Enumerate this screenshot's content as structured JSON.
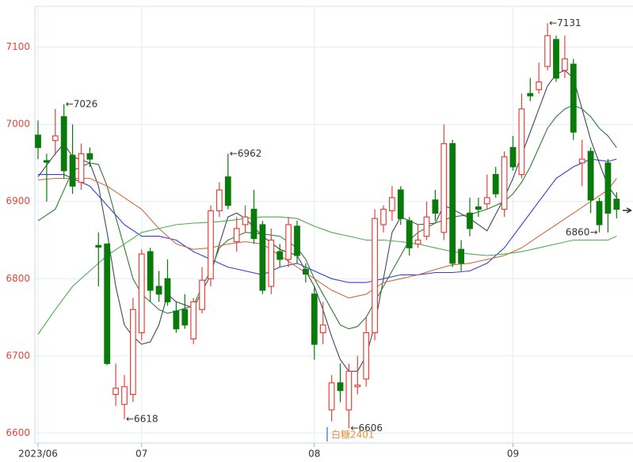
{
  "chart_data": {
    "type": "candlestick",
    "categories": [
      "2023/06",
      null,
      null,
      null,
      null,
      null,
      null,
      null,
      null,
      null,
      null,
      null,
      "07",
      null,
      null,
      null,
      null,
      null,
      null,
      null,
      null,
      null,
      null,
      null,
      null,
      null,
      null,
      null,
      null,
      null,
      null,
      null,
      "08",
      null,
      null,
      null,
      null,
      null,
      null,
      null,
      null,
      null,
      null,
      null,
      null,
      null,
      null,
      null,
      null,
      null,
      null,
      null,
      null,
      null,
      null,
      "09",
      null,
      null,
      null,
      null,
      null,
      null,
      null,
      null,
      null,
      null,
      null,
      null
    ],
    "open": [
      6986,
      6953,
      6979,
      7010,
      6960,
      6925,
      6962,
      6843,
      6845,
      6650,
      6637,
      6650,
      6730,
      6835,
      6790,
      6800,
      6758,
      6760,
      6722,
      6760,
      6800,
      6888,
      6932,
      6848,
      6870,
      6890,
      6870,
      6790,
      6835,
      6825,
      6868,
      6812,
      6780,
      6730,
      6630,
      6665,
      6630,
      6660,
      6670,
      6730,
      6870,
      6888,
      6915,
      6875,
      6845,
      6855,
      6902,
      6860,
      6975,
      6838,
      6885,
      6893,
      6897,
      6935,
      6890,
      6970,
      6935,
      7040,
      7045,
      7075,
      7110,
      7070,
      7078,
      6950,
      6965,
      6900,
      6950,
      6903
    ],
    "high": [
      7005,
      6962,
      7020,
      7026,
      7000,
      6975,
      6970,
      6860,
      6845,
      6690,
      6675,
      6775,
      6838,
      6840,
      6810,
      6825,
      6770,
      6780,
      6775,
      6815,
      6895,
      6925,
      6962,
      6880,
      6895,
      6915,
      6875,
      6865,
      6845,
      6880,
      6875,
      6820,
      6790,
      6770,
      6675,
      6690,
      6690,
      6700,
      6750,
      6890,
      6895,
      6920,
      6920,
      6880,
      6870,
      6900,
      6915,
      7000,
      6980,
      6850,
      6905,
      6905,
      6935,
      6945,
      6965,
      6985,
      7040,
      7060,
      7080,
      7131,
      7115,
      7115,
      7085,
      6980,
      6970,
      6905,
      6955,
      6912
    ],
    "low": [
      6955,
      6900,
      6960,
      6930,
      6910,
      6915,
      6945,
      6790,
      6688,
      6635,
      6618,
      6640,
      6720,
      6770,
      6770,
      6765,
      6730,
      6735,
      6715,
      6755,
      6790,
      6880,
      6890,
      6835,
      6860,
      6845,
      6780,
      6780,
      6815,
      6815,
      6820,
      6795,
      6695,
      6715,
      6615,
      6640,
      6606,
      6650,
      6660,
      6720,
      6860,
      6875,
      6870,
      6830,
      6840,
      6850,
      6875,
      6850,
      6815,
      6810,
      6855,
      6880,
      6890,
      6905,
      6880,
      6940,
      6930,
      7030,
      7040,
      7070,
      7055,
      7060,
      6980,
      6920,
      6885,
      6860,
      6860,
      6878
    ],
    "close": [
      6970,
      6951,
      6985,
      6940,
      6920,
      6962,
      6955,
      6841,
      6690,
      6658,
      6660,
      6760,
      6832,
      6785,
      6780,
      6770,
      6735,
      6740,
      6770,
      6798,
      6888,
      6915,
      6895,
      6865,
      6880,
      6852,
      6785,
      6850,
      6825,
      6870,
      6830,
      6806,
      6715,
      6740,
      6665,
      6655,
      6680,
      6662,
      6730,
      6878,
      6890,
      6905,
      6878,
      6840,
      6850,
      6880,
      6885,
      6975,
      6820,
      6820,
      6865,
      6890,
      6905,
      6910,
      6958,
      6945,
      7020,
      7037,
      7055,
      7115,
      7060,
      7085,
      6990,
      6955,
      6902,
      6870,
      6885,
      6890
    ],
    "up_color": "#e8413b",
    "down_color": "#0a7a0a",
    "lines": [
      {
        "color": "#3d4a5c",
        "x": [
          0,
          2,
          3,
          4,
          6,
          7,
          8,
          9,
          10,
          11,
          12,
          13,
          14,
          15,
          16,
          18,
          20,
          21,
          22,
          23,
          24,
          26,
          28,
          30,
          31,
          32,
          33,
          34,
          35,
          36,
          37,
          38,
          39,
          40,
          41,
          42,
          44,
          46,
          47,
          48,
          50,
          52,
          54,
          55,
          56,
          57,
          58,
          59,
          60,
          61,
          62,
          63,
          64,
          65,
          66,
          67
        ],
        "values": [
          6932,
          6962,
          6975,
          6958,
          6950,
          6920,
          6860,
          6790,
          6740,
          6725,
          6715,
          6718,
          6740,
          6780,
          6770,
          6762,
          6805,
          6845,
          6880,
          6885,
          6878,
          6855,
          6838,
          6830,
          6810,
          6790,
          6760,
          6725,
          6695,
          6680,
          6680,
          6700,
          6740,
          6800,
          6860,
          6880,
          6870,
          6872,
          6895,
          6890,
          6878,
          6862,
          6905,
          6930,
          6960,
          6990,
          7020,
          7050,
          7065,
          7070,
          7060,
          7020,
          6980,
          6950,
          6920,
          6905
        ]
      },
      {
        "color": "#2e7d32",
        "x": [
          0,
          2,
          4,
          6,
          7,
          8,
          9,
          10,
          11,
          12,
          13,
          14,
          15,
          16,
          18,
          19,
          20,
          21,
          22,
          24,
          26,
          28,
          30,
          31,
          32,
          33,
          34,
          35,
          36,
          37,
          38,
          39,
          40,
          41,
          42,
          43,
          44,
          46,
          48,
          50,
          52,
          54,
          55,
          56,
          57,
          58,
          59,
          60,
          61,
          62,
          63,
          64,
          65,
          66,
          67
        ],
        "values": [
          6875,
          6890,
          6940,
          6950,
          6948,
          6920,
          6880,
          6840,
          6800,
          6780,
          6770,
          6760,
          6755,
          6758,
          6765,
          6790,
          6810,
          6840,
          6850,
          6860,
          6858,
          6855,
          6840,
          6825,
          6800,
          6780,
          6760,
          6740,
          6735,
          6738,
          6750,
          6770,
          6790,
          6810,
          6830,
          6850,
          6860,
          6872,
          6880,
          6883,
          6890,
          6900,
          6910,
          6925,
          6945,
          6970,
          6995,
          7010,
          7020,
          7025,
          7020,
          7010,
          6995,
          6985,
          6970
        ]
      },
      {
        "color": "#3b3fc8",
        "x": [
          0,
          3,
          4,
          6,
          8,
          10,
          12,
          14,
          16,
          18,
          20,
          22,
          24,
          26,
          28,
          30,
          32,
          34,
          36,
          38,
          40,
          42,
          44,
          46,
          48,
          50,
          52,
          54,
          56,
          58,
          60,
          62,
          64,
          66,
          67
        ],
        "values": [
          6935,
          6935,
          6930,
          6920,
          6895,
          6870,
          6855,
          6855,
          6850,
          6835,
          6825,
          6815,
          6810,
          6805,
          6815,
          6820,
          6810,
          6800,
          6795,
          6795,
          6800,
          6805,
          6805,
          6808,
          6808,
          6810,
          6820,
          6840,
          6870,
          6900,
          6930,
          6945,
          6955,
          6952,
          6955
        ]
      },
      {
        "color": "#d2693c",
        "x": [
          0,
          2,
          4,
          6,
          8,
          10,
          12,
          14,
          16,
          18,
          20,
          22,
          24,
          26,
          28,
          30,
          32,
          34,
          36,
          38,
          40,
          42,
          44,
          46,
          48,
          50,
          52,
          54,
          56,
          58,
          60,
          62,
          64,
          66,
          67
        ],
        "values": [
          6928,
          6930,
          6930,
          6930,
          6920,
          6905,
          6890,
          6865,
          6845,
          6838,
          6840,
          6845,
          6848,
          6845,
          6830,
          6815,
          6800,
          6785,
          6775,
          6780,
          6795,
          6800,
          6805,
          6812,
          6818,
          6820,
          6825,
          6830,
          6840,
          6855,
          6870,
          6885,
          6900,
          6915,
          6930
        ]
      },
      {
        "color": "#4caf50",
        "x": [
          0,
          2,
          4,
          6,
          8,
          10,
          12,
          14,
          16,
          18,
          20,
          22,
          24,
          26,
          28,
          30,
          32,
          34,
          36,
          38,
          40,
          42,
          44,
          46,
          48,
          50,
          52,
          54,
          56,
          58,
          60,
          62,
          64,
          66,
          67
        ],
        "values": [
          6728,
          6760,
          6790,
          6810,
          6830,
          6845,
          6860,
          6865,
          6870,
          6872,
          6873,
          6875,
          6878,
          6880,
          6880,
          6878,
          6868,
          6860,
          6855,
          6850,
          6850,
          6848,
          6845,
          6840,
          6835,
          6832,
          6830,
          6832,
          6835,
          6840,
          6845,
          6850,
          6850,
          6850,
          6855
        ]
      }
    ],
    "annotations": [
      {
        "text": "←7026",
        "x": 3,
        "y": 7026,
        "align": "start"
      },
      {
        "text": "←6962",
        "x": 22,
        "y": 6962,
        "align": "start"
      },
      {
        "text": "←6618",
        "x": 10,
        "y": 6618,
        "align": "start"
      },
      {
        "text": "←6606",
        "x": 36,
        "y": 6606,
        "align": "start"
      },
      {
        "text": "←7131",
        "x": 59,
        "y": 7131,
        "align": "start"
      },
      {
        "text": "6860→",
        "x": 65,
        "y": 6860,
        "align": "end"
      }
    ],
    "contract": "白糖2401",
    "ylim": [
      6587,
      7153
    ],
    "yticks": [
      6600,
      6700,
      6800,
      6900,
      7000,
      7100
    ],
    "grid": true
  }
}
